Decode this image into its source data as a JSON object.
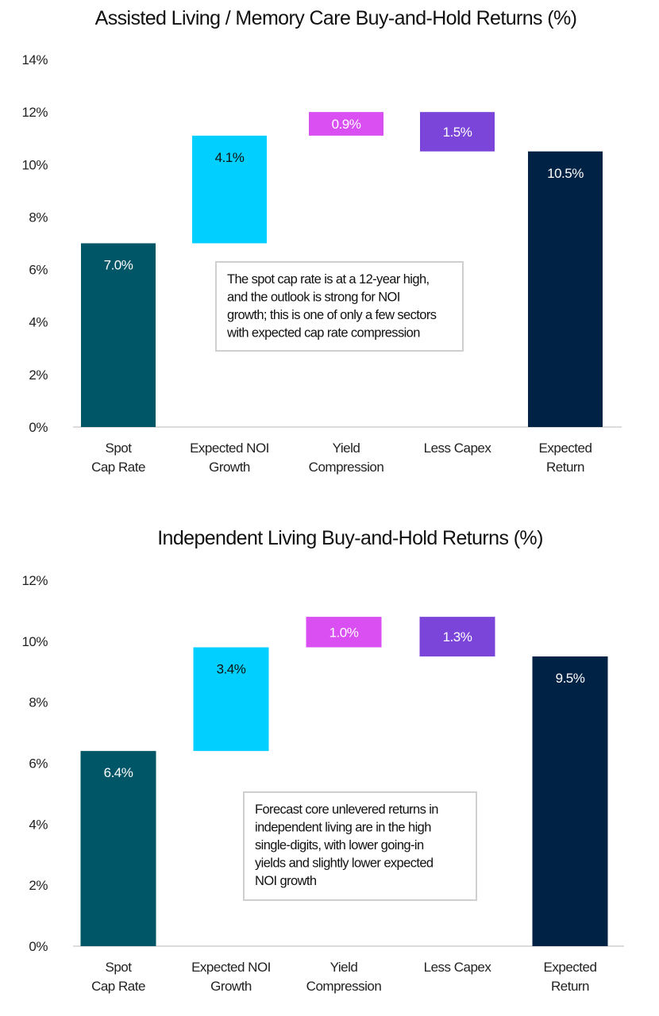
{
  "chart_data": [
    {
      "type": "bar",
      "subtype": "waterfall",
      "title": "Assisted Living / Memory Care Buy-and-Hold Returns (%)",
      "categories": [
        [
          "Spot",
          "Cap Rate"
        ],
        [
          "Expected NOI",
          "Growth"
        ],
        [
          "Yield",
          "Compression"
        ],
        [
          "Less Capex"
        ],
        [
          "Expected",
          "Return"
        ]
      ],
      "values": [
        7.0,
        4.1,
        0.9,
        -1.5,
        10.5
      ],
      "value_labels": [
        "7.0%",
        "4.1%",
        "0.9%",
        "1.5%",
        "10.5%"
      ],
      "kinds": [
        "total",
        "increase",
        "increase",
        "decrease",
        "total"
      ],
      "colors": [
        "#005566",
        "#00CFFF",
        "#D94FF2",
        "#7B45D9",
        "#002244"
      ],
      "label_colors": [
        "#ffffff",
        "#111111",
        "#ffffff",
        "#ffffff",
        "#ffffff"
      ],
      "ylim": [
        0,
        14
      ],
      "yticks": [
        0,
        2,
        4,
        6,
        8,
        10,
        12,
        14
      ],
      "ytick_labels": [
        "0%",
        "2%",
        "4%",
        "6%",
        "8%",
        "10%",
        "12%",
        "14%"
      ],
      "grid": false,
      "annotation": [
        "The spot cap rate is at a 12-year high,",
        "and the outlook is strong for NOI",
        "growth; this is one of only a few sectors",
        "with expected cap rate compression"
      ]
    },
    {
      "type": "bar",
      "subtype": "waterfall",
      "title": "Independent Living Buy-and-Hold Returns (%)",
      "categories": [
        [
          "Spot",
          "Cap Rate"
        ],
        [
          "Expected NOI",
          "Growth"
        ],
        [
          "Yield",
          "Compression"
        ],
        [
          "Less Capex"
        ],
        [
          "Expected",
          "Return"
        ]
      ],
      "values": [
        6.4,
        3.4,
        1.0,
        -1.3,
        9.5
      ],
      "value_labels": [
        "6.4%",
        "3.4%",
        "1.0%",
        "1.3%",
        "9.5%"
      ],
      "kinds": [
        "total",
        "increase",
        "increase",
        "decrease",
        "total"
      ],
      "colors": [
        "#005566",
        "#00CFFF",
        "#D94FF2",
        "#7B45D9",
        "#002244"
      ],
      "label_colors": [
        "#ffffff",
        "#111111",
        "#ffffff",
        "#ffffff",
        "#ffffff"
      ],
      "ylim": [
        0,
        12
      ],
      "yticks": [
        0,
        2,
        4,
        6,
        8,
        10,
        12
      ],
      "ytick_labels": [
        "0%",
        "2%",
        "4%",
        "6%",
        "8%",
        "10%",
        "12%"
      ],
      "grid": false,
      "annotation": [
        "Forecast core unlevered returns in",
        "independent living are in the high",
        "single-digits, with lower going-in",
        "yields and slightly lower expected",
        "NOI growth"
      ]
    }
  ]
}
